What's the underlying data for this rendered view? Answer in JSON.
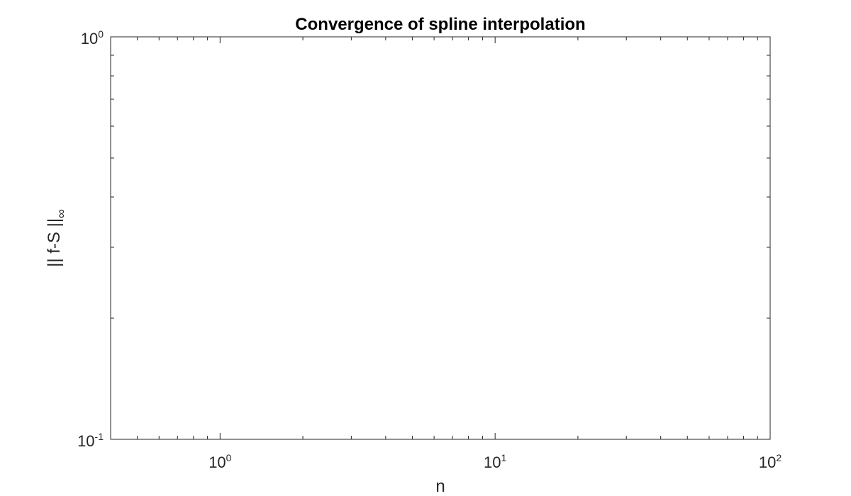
{
  "chart_data": {
    "type": "line",
    "title": "Convergence of spline interpolation",
    "xlabel": "n",
    "ylabel": {
      "main": "|| f-S ||",
      "subscript": "∞"
    },
    "x_scale": "log",
    "y_scale": "log",
    "xlim": [
      0.4,
      100
    ],
    "ylim": [
      0.1,
      1
    ],
    "x_ticks": [
      {
        "value": 1,
        "base": "10",
        "exp": "0"
      },
      {
        "value": 10,
        "base": "10",
        "exp": "1"
      },
      {
        "value": 100,
        "base": "10",
        "exp": "2"
      }
    ],
    "y_ticks": [
      {
        "value": 0.1,
        "base": "10",
        "exp": "-1"
      },
      {
        "value": 1,
        "base": "10",
        "exp": "0"
      }
    ],
    "grid": false,
    "box": true,
    "series": []
  },
  "colors": {
    "axis": "#262626",
    "background": "#ffffff"
  }
}
